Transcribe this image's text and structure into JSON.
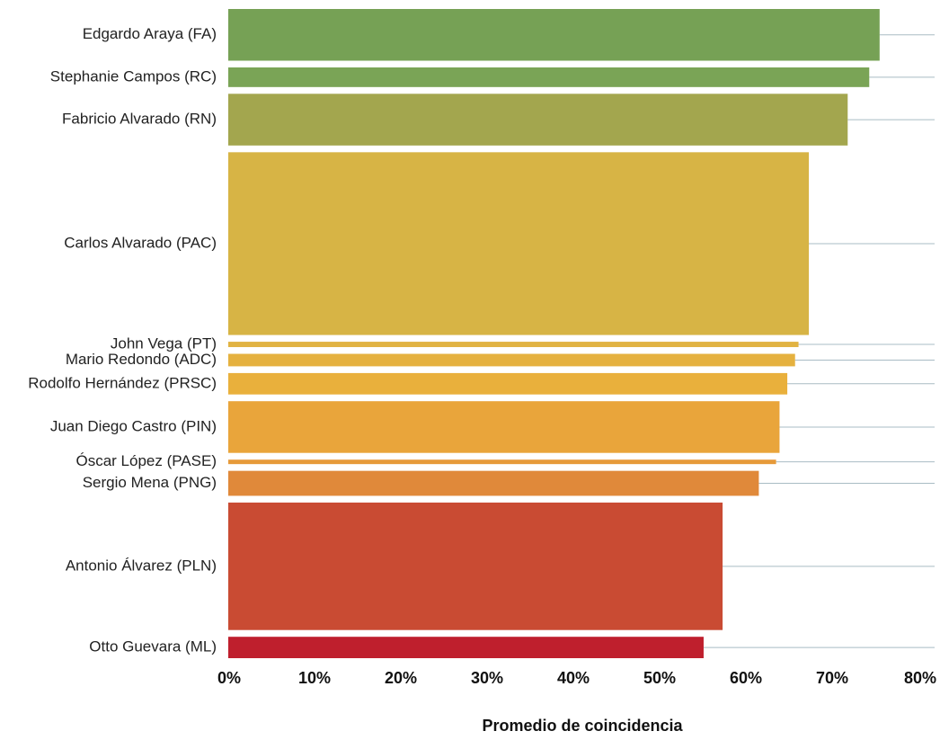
{
  "chart_data": {
    "type": "bar",
    "orientation": "horizontal",
    "variable_width": true,
    "categories": [
      "Edgardo Araya (FA)",
      "Stephanie Campos (RC)",
      "Fabricio Alvarado (RN)",
      "Carlos Alvarado (PAC)",
      "John Vega (PT)",
      "Mario Redondo (ADC)",
      "Rodolfo Hernández (PRSC)",
      "Juan Diego Castro (PIN)",
      "Óscar López (PASE)",
      "Sergio Mena (PNG)",
      "Antonio Álvarez (PLN)",
      "Otto Guevara (ML)"
    ],
    "values": [
      75.5,
      74.3,
      71.8,
      67.3,
      66.1,
      65.7,
      64.8,
      63.9,
      63.5,
      61.5,
      57.3,
      55.1
    ],
    "weights": [
      58,
      22,
      58,
      205,
      6,
      14,
      24,
      58,
      5,
      28,
      143,
      24
    ],
    "colors": [
      "#76a155",
      "#7aa456",
      "#a3a64e",
      "#d7b445",
      "#e1b342",
      "#e5b13f",
      "#e9b03c",
      "#e9a53b",
      "#e69a3a",
      "#e0893a",
      "#c94b33",
      "#bf1f2d"
    ],
    "xlim": [
      0,
      80
    ],
    "xticks": [
      0,
      10,
      20,
      30,
      40,
      50,
      60,
      70,
      80
    ],
    "xtick_labels": [
      "0%",
      "10%",
      "20%",
      "30%",
      "40%",
      "50%",
      "60%",
      "70%",
      "80%"
    ],
    "xlabel": "Promedio de coincidencia",
    "ylabel": "",
    "title": "",
    "grid": false,
    "legend": "none"
  }
}
